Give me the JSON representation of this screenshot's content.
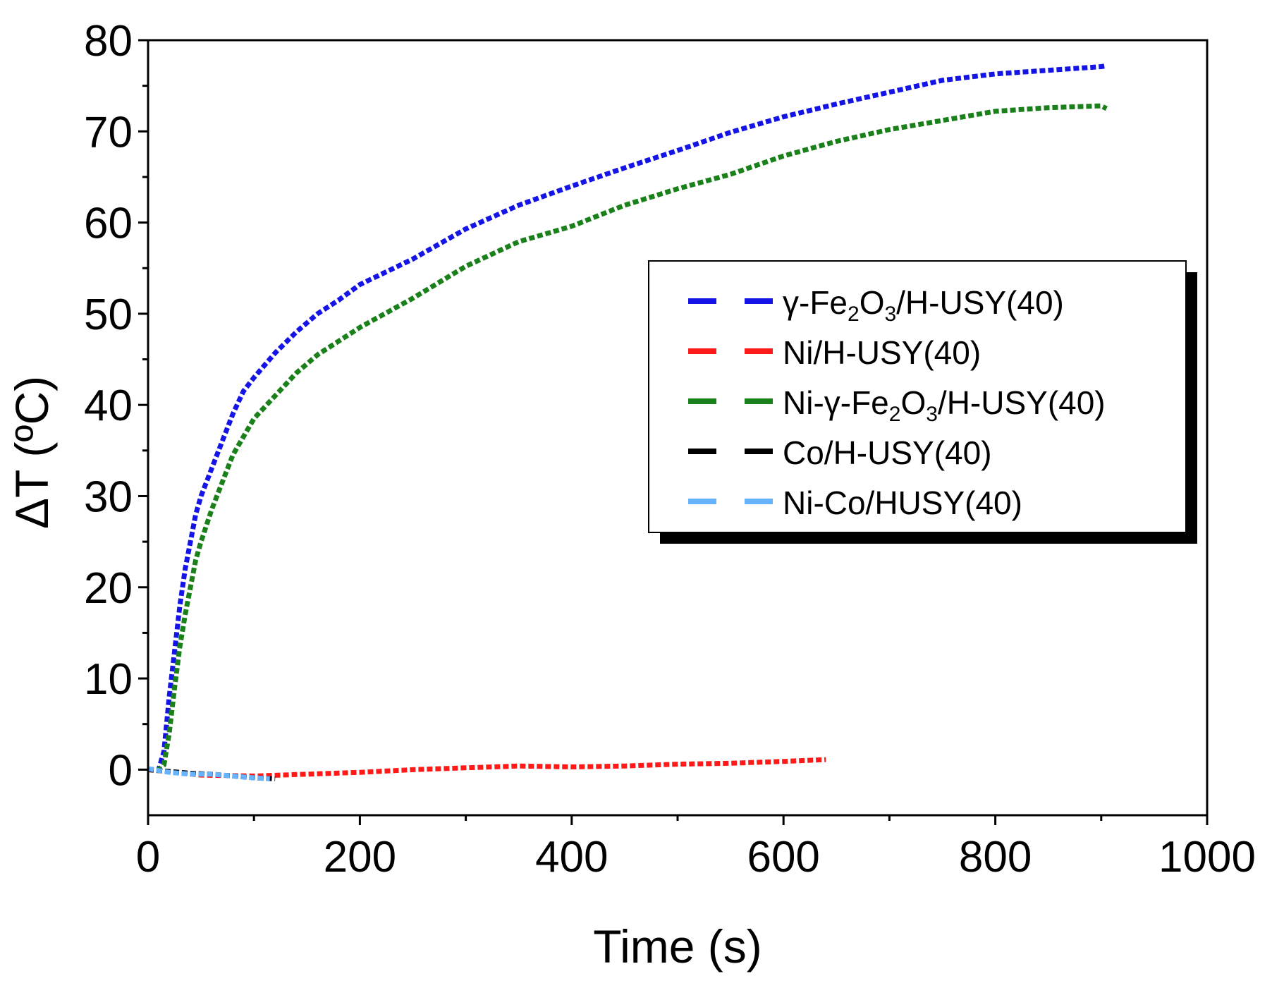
{
  "chart_data": {
    "type": "line",
    "title": "",
    "xlabel": "Time (s)",
    "ylabel": "ΔT (ºC)",
    "xlim": [
      0,
      1000
    ],
    "ylim": [
      -5,
      80
    ],
    "x_ticks": [
      0,
      200,
      400,
      600,
      800,
      1000
    ],
    "y_ticks": [
      0,
      10,
      20,
      30,
      40,
      50,
      60,
      70,
      80
    ],
    "x_tick_labels": [
      "0",
      "200",
      "400",
      "600",
      "800",
      "1000"
    ],
    "y_tick_labels": [
      "0",
      "10",
      "20",
      "30",
      "40",
      "50",
      "60",
      "70",
      "80"
    ],
    "legend_position": "upper-right",
    "grid": false,
    "series": [
      {
        "name": "γ-Fe2O3/H-USY(40)",
        "legend_parts": [
          [
            "γ-Fe",
            false
          ],
          [
            "2",
            true
          ],
          [
            "O",
            false
          ],
          [
            "3",
            true
          ],
          [
            "/H-USY(40)",
            false
          ]
        ],
        "color": "#1414e6",
        "x": [
          0,
          10,
          15,
          20,
          25,
          30,
          35,
          40,
          45,
          50,
          60,
          70,
          80,
          90,
          100,
          120,
          140,
          160,
          180,
          200,
          250,
          300,
          350,
          400,
          450,
          500,
          550,
          600,
          650,
          700,
          750,
          800,
          850,
          900,
          905
        ],
        "y": [
          0,
          0,
          2,
          8,
          13,
          18,
          22,
          25,
          28,
          30,
          33,
          36,
          39,
          41.5,
          43,
          45.7,
          48,
          50,
          51.5,
          53.2,
          56,
          59.3,
          61.9,
          64,
          66,
          67.9,
          69.9,
          71.6,
          73,
          74.3,
          75.6,
          76.3,
          76.7,
          77.1,
          77.2
        ]
      },
      {
        "name": "Ni/H-USY(40)",
        "legend_parts": [
          [
            "Ni/H-USY(40)",
            false
          ]
        ],
        "color": "#ff1a1a",
        "x": [
          0,
          50,
          100,
          150,
          200,
          250,
          300,
          350,
          400,
          450,
          500,
          550,
          600,
          640
        ],
        "y": [
          0,
          -0.6,
          -0.7,
          -0.5,
          -0.3,
          0,
          0.2,
          0.4,
          0.3,
          0.4,
          0.6,
          0.7,
          0.9,
          1.1
        ]
      },
      {
        "name": "Ni-γ-Fe2O3/H-USY(40)",
        "legend_parts": [
          [
            "Ni-γ-Fe",
            false
          ],
          [
            "2",
            true
          ],
          [
            "O",
            false
          ],
          [
            "3",
            true
          ],
          [
            "/H-USY(40)",
            false
          ]
        ],
        "color": "#1a801a",
        "x": [
          0,
          10,
          15,
          20,
          25,
          30,
          35,
          40,
          45,
          50,
          60,
          70,
          80,
          90,
          100,
          120,
          140,
          160,
          180,
          200,
          250,
          300,
          350,
          400,
          450,
          500,
          550,
          600,
          650,
          700,
          750,
          800,
          850,
          900,
          905
        ],
        "y": [
          0,
          0,
          0.5,
          4,
          9,
          13.5,
          17,
          20,
          23,
          25,
          28.5,
          31.5,
          34.5,
          36.5,
          38.5,
          41,
          43.5,
          45.5,
          47,
          48.5,
          51.7,
          55.2,
          57.9,
          59.6,
          61.9,
          63.7,
          65.3,
          67.3,
          68.9,
          70.2,
          71.2,
          72.2,
          72.6,
          72.8,
          72.5
        ]
      },
      {
        "name": "Co/H-USY(40)",
        "legend_parts": [
          [
            "Co/H-USY(40)",
            false
          ]
        ],
        "color": "#000000",
        "x": [
          0,
          20,
          40,
          60,
          80,
          100,
          120
        ],
        "y": [
          0,
          -0.2,
          -0.4,
          -0.5,
          -0.7,
          -0.9,
          -1.0
        ]
      },
      {
        "name": "Ni-Co/HUSY(40)",
        "legend_parts": [
          [
            "Ni-Co/HUSY(40)",
            false
          ]
        ],
        "color": "#66b3ff",
        "x": [
          0,
          20,
          40,
          60,
          80,
          100,
          115
        ],
        "y": [
          0.1,
          -0.3,
          -0.5,
          -0.5,
          -0.7,
          -0.9,
          -1.0
        ]
      }
    ]
  }
}
